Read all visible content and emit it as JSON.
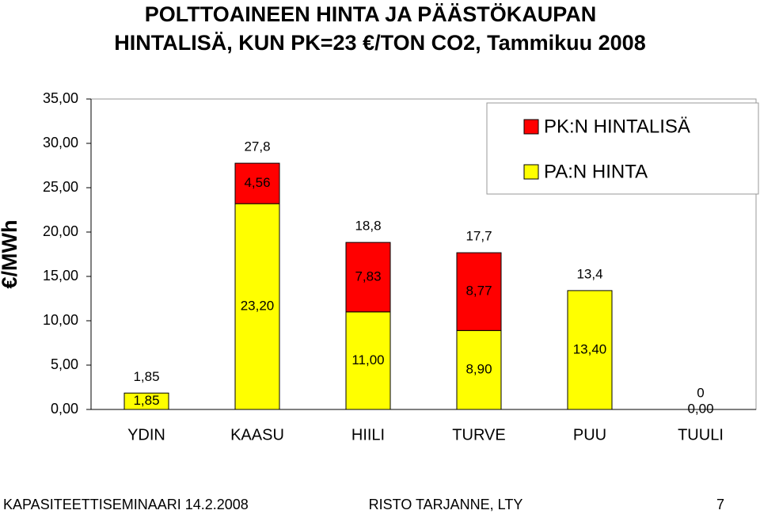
{
  "chart_data": {
    "type": "stacked-bar",
    "title": [
      "POLTTOAINEEN HINTA JA PÄÄSTÖKAUPAN",
      "HINTALISÄ, KUN PK=23 €/TON CO2, Tammikuu 2008"
    ],
    "y_label": "€/MWh",
    "categories": [
      "YDIN",
      "KAASU",
      "HIILI",
      "TURVE",
      "PUU",
      "TUULI"
    ],
    "series": [
      {
        "name": "PA:N HINTA",
        "color": "#ffff00",
        "values": [
          1.85,
          23.2,
          11.0,
          8.9,
          13.4,
          0.0
        ],
        "value_labels": [
          "1,85",
          "23,20",
          "11,00",
          "8,90",
          "13,40",
          "0,00"
        ]
      },
      {
        "name": "PK:N HINTALISÄ",
        "color": "#ff0000",
        "values": [
          null,
          4.56,
          7.83,
          8.77,
          null,
          null
        ],
        "value_labels": [
          null,
          "4,56",
          "7,83",
          "8,77",
          null,
          null
        ]
      }
    ],
    "totals": {
      "values": [
        1.85,
        27.8,
        18.8,
        17.7,
        13.4,
        0
      ],
      "value_labels": [
        "1,85",
        "27,8",
        "18,8",
        "17,7",
        "13,4",
        "0"
      ]
    },
    "ylim": [
      0,
      35
    ],
    "yticks": [
      {
        "value": 0,
        "label": "0,00"
      },
      {
        "value": 5,
        "label": "5,00"
      },
      {
        "value": 10,
        "label": "10,00"
      },
      {
        "value": 15,
        "label": "15,00"
      },
      {
        "value": 20,
        "label": "20,00"
      },
      {
        "value": 25,
        "label": "25,00"
      },
      {
        "value": 30,
        "label": "30,00"
      },
      {
        "value": 35,
        "label": "35,00"
      }
    ],
    "legend": "upper-right"
  },
  "footer": {
    "left": "KAPASITEETTISEMINAARI 14.2.2008",
    "center": "RISTO TARJANNE, LTY",
    "right": "7"
  }
}
